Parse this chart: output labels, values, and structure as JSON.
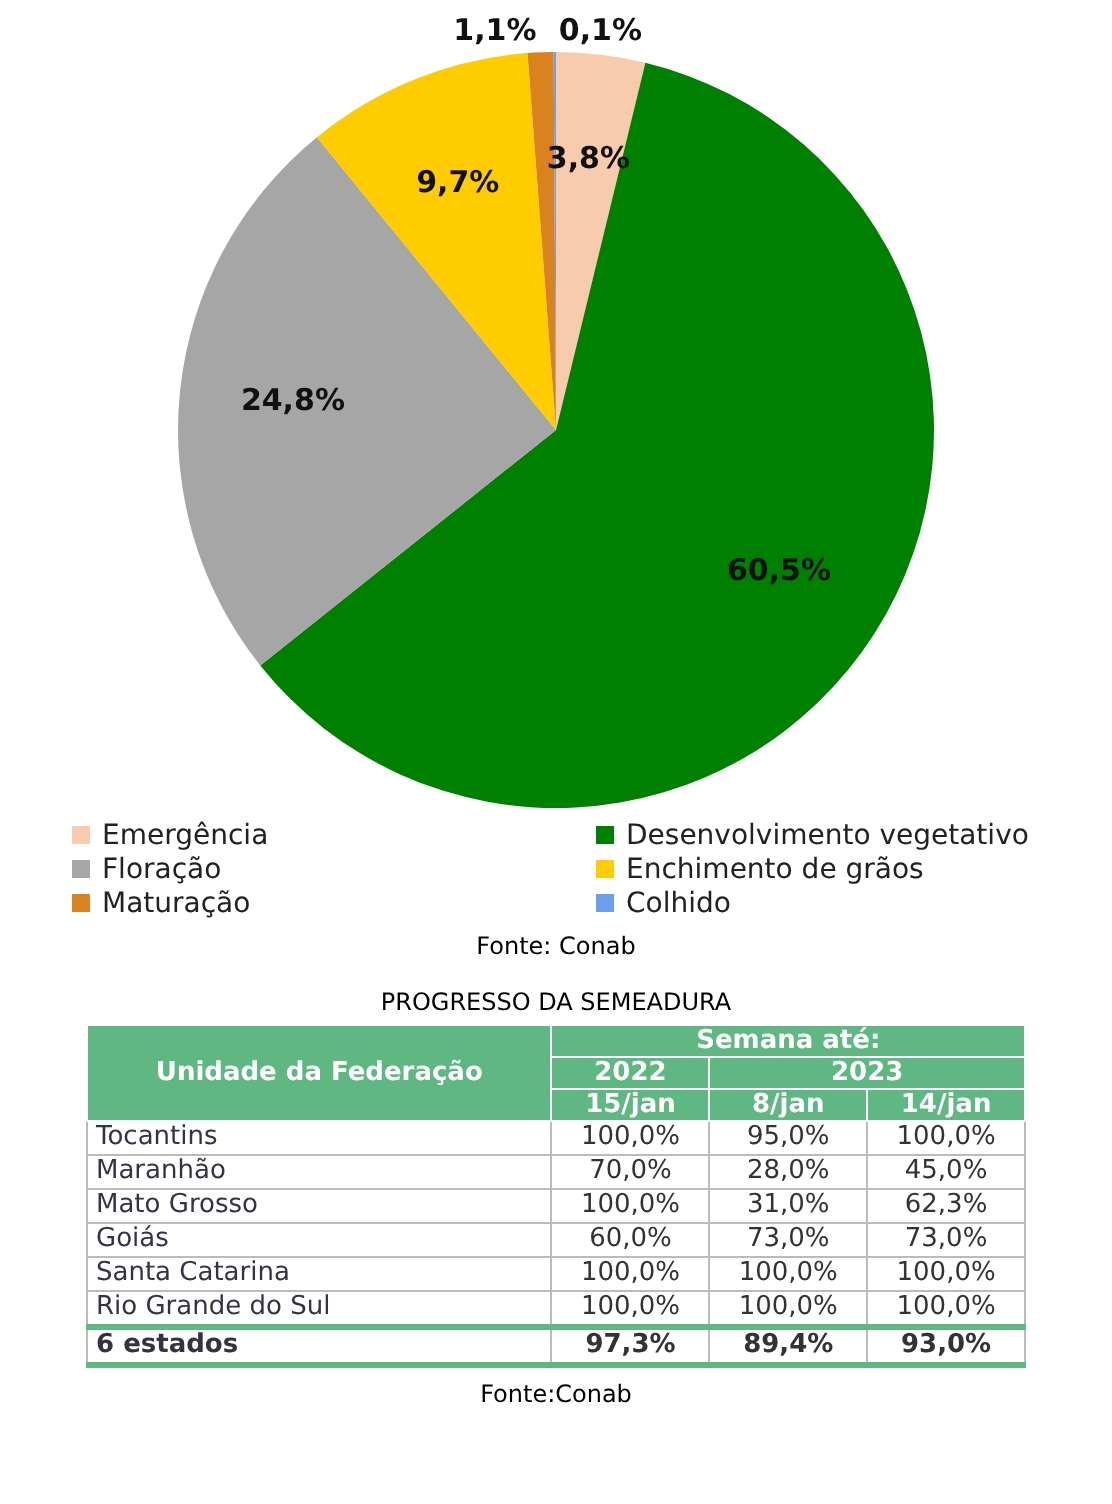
{
  "chart_data": [
    {
      "type": "pie",
      "categories": [
        "Emergência",
        "Desenvolvimento vegetativo",
        "Floração",
        "Enchimento de grãos",
        "Maturação",
        "Colhido"
      ],
      "values": [
        3.8,
        60.5,
        24.8,
        9.7,
        1.1,
        0.1
      ],
      "value_labels": [
        "3,8%",
        "60,5%",
        "24,8%",
        "9,7%",
        "1,1%",
        "0,1%"
      ],
      "colors": [
        "#f8cbad",
        "#008000",
        "#a6a6a6",
        "#ffcc00",
        "#d9821f",
        "#6d9eeb"
      ],
      "legend": "bottom",
      "annotations": [
        "Fonte: Conab"
      ]
    },
    {
      "type": "other",
      "title": "PROGRESSO DA SEMEADURA",
      "annotations": [
        "Unidade da Federação",
        "Semana até:",
        "2022",
        "2023",
        "15/jan",
        "8/jan",
        "14/jan",
        "Tocantins",
        "100,0%",
        "95,0%",
        "100,0%",
        "Maranhão",
        "70,0%",
        "28,0%",
        "45,0%",
        "Mato Grosso",
        "100,0%",
        "31,0%",
        "62,3%",
        "Goiás",
        "60,0%",
        "73,0%",
        "73,0%",
        "Santa Catarina",
        "100,0%",
        "100,0%",
        "100,0%",
        "Rio Grande do Sul",
        "100,0%",
        "100,0%",
        "100,0%",
        "6 estados",
        "97,3%",
        "89,4%",
        "93,0%",
        "Fonte:Conab"
      ]
    }
  ]
}
